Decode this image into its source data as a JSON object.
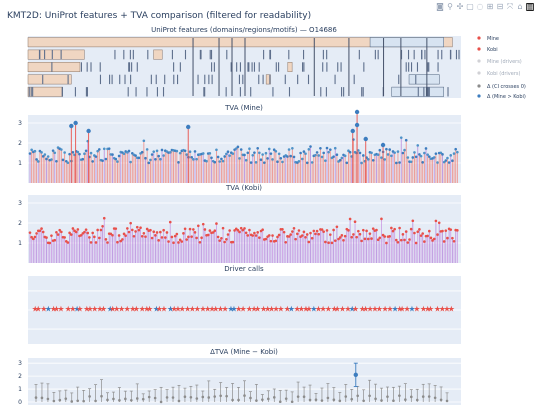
{
  "title": "KMT2D: UniProt features + TVA comparison (filtered for readability)",
  "toolbar": {
    "icons": [
      "camera-icon",
      "zoom-icon",
      "pan-icon",
      "box-select-icon",
      "lasso-icon",
      "zoom-in-icon",
      "zoom-out-icon",
      "autoscale-icon",
      "reset-axes-icon",
      "plotly-logo"
    ]
  },
  "legend": {
    "items": [
      {
        "label": "Mine",
        "color": "#e8504a",
        "symbol": "dot"
      },
      {
        "label": "Kobi",
        "color": "#e8504a",
        "symbol": "dot"
      },
      {
        "label": "Mine (drivers)",
        "color": "#cfcfd4",
        "symbol": "dot"
      },
      {
        "label": "Kobi (drivers)",
        "color": "#cfcfd4",
        "symbol": "dot"
      },
      {
        "label": "Δ (CI crosses 0)",
        "color": "#8c8c8c",
        "symbol": "dot"
      },
      {
        "label": "Δ (Mine > Kobi)",
        "color": "#3d7dbf",
        "symbol": "dot"
      }
    ]
  },
  "chart_data": [
    {
      "type": "heatmap",
      "title": "UniProt features (domains/regions/motifs) — O14686",
      "rows": 5,
      "features": [
        {
          "row": 4,
          "x": [
            0.0,
            0.98
          ],
          "kind": "region"
        },
        {
          "row": 3,
          "x": [
            0.0,
            0.13
          ],
          "kind": "region"
        },
        {
          "row": 2,
          "x": [
            0.0,
            0.12
          ],
          "kind": "region"
        },
        {
          "row": 1,
          "x": [
            0.0,
            0.1
          ],
          "kind": "region"
        },
        {
          "row": 0,
          "x": [
            0.0,
            0.08
          ],
          "kind": "region"
        },
        {
          "row": 3,
          "x": [
            0.29,
            0.31
          ],
          "kind": "region"
        },
        {
          "row": 1,
          "x": [
            0.55,
            0.56
          ],
          "kind": "region"
        },
        {
          "row": 2,
          "x": [
            0.6,
            0.61
          ],
          "kind": "region"
        },
        {
          "row": 4,
          "x": [
            0.79,
            0.96
          ],
          "kind": "domain"
        },
        {
          "row": 0,
          "x": [
            0.84,
            0.96
          ],
          "kind": "domain"
        },
        {
          "row": 1,
          "x": [
            0.88,
            0.95
          ],
          "kind": "domain"
        }
      ]
    },
    {
      "type": "scatter",
      "title": "TVA (Mine)",
      "ylim": [
        0,
        3.4
      ],
      "yticks": [
        1,
        2,
        3
      ],
      "peaks": [
        [
          0.11,
          3.0
        ],
        [
          0.1,
          2.85
        ],
        [
          0.14,
          2.6
        ],
        [
          0.37,
          2.8
        ],
        [
          0.76,
          3.55
        ],
        [
          0.76,
          2.9
        ],
        [
          0.75,
          2.6
        ],
        [
          0.78,
          2.2
        ],
        [
          0.82,
          1.9
        ]
      ]
    },
    {
      "type": "scatter",
      "title": "TVA (Kobi)",
      "ylim": [
        0,
        3.4
      ],
      "yticks": [
        1,
        2,
        3
      ]
    },
    {
      "type": "scatter",
      "title": "Driver calls"
    },
    {
      "type": "scatter",
      "title": "ΔTVA (Mine − Kobi)",
      "ylim": [
        0,
        3.4
      ],
      "yticks": [
        0,
        1,
        2,
        3
      ],
      "highlight": {
        "x": 0.757,
        "y": 2.1,
        "ci": [
          1.2,
          3.0
        ]
      }
    }
  ]
}
